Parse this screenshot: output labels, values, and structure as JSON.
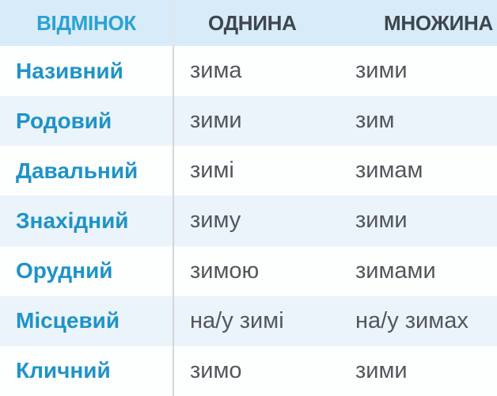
{
  "table": {
    "headers": [
      "ВІДМІНОК",
      "ОДНИНА",
      "МНОЖИНА"
    ],
    "rows": [
      {
        "case": "Називний",
        "singular": "зима",
        "plural": "зими"
      },
      {
        "case": "Родовий",
        "singular": "зими",
        "plural": "зим"
      },
      {
        "case": "Давальний",
        "singular": "зимі",
        "plural": "зимам"
      },
      {
        "case": "Знахідний",
        "singular": "зиму",
        "plural": "зими"
      },
      {
        "case": "Орудний",
        "singular": "зимою",
        "plural": "зимами"
      },
      {
        "case": "Місцевий",
        "singular": "на/у зимі",
        "plural": "на/у зимах"
      },
      {
        "case": "Кличний",
        "singular": "зимо",
        "plural": "зими"
      }
    ],
    "colors": {
      "header_bg": "#d7ecf8",
      "header_case_text": "#2aa1d6",
      "header_number_text": "#3f464d",
      "case_label_text": "#1e93c8",
      "value_text": "#53575c",
      "row_bg": "#fdfefe",
      "row_alt_bg": "#ebf4fa",
      "divider": "#d5d6d7",
      "header_divider": "#e1e7ee"
    }
  }
}
